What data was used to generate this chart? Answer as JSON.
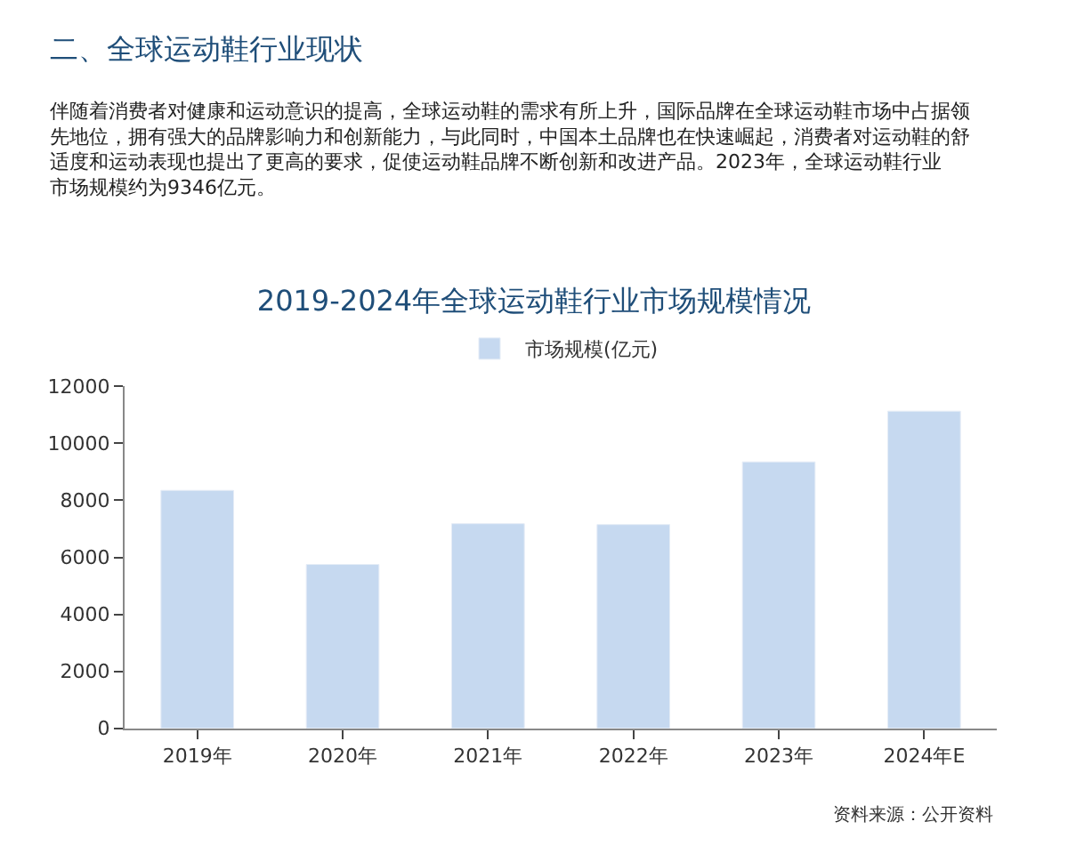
{
  "chart_data": {
    "type": "bar",
    "title": "2019-2024年全球运动鞋行业市场规模情况",
    "categories": [
      "2019年",
      "2020年",
      "2021年",
      "2022年",
      "2023年",
      "2024年E"
    ],
    "series": [
      {
        "name": "市场规模(亿元)",
        "color": "#c6d9f0",
        "values": [
          8350,
          5750,
          7180,
          7150,
          9350,
          11130
        ]
      }
    ],
    "ylim": [
      0,
      12000
    ],
    "yticks": [
      0,
      2000,
      4000,
      6000,
      8000,
      10000,
      12000
    ],
    "legend": "top",
    "annotations": [
      "二、全球运动鞋行业现状",
      "伴随着消费者对健康和运动意识的提高，全球运动鞋的需求有所上升，国际品牌在全球运动鞋市场中占据领先地位，拥有强大的品牌影响力和创新能力，与此同时，中国本土品牌也在快速崛起，消费者对运动鞋的舒适度和运动表现也提出了更高的要求，促使运动鞋品牌不断创新和改进产品。2023年，全球运动鞋行业市场规模约为9346亿元。",
      "资料来源：公开资料"
    ]
  }
}
